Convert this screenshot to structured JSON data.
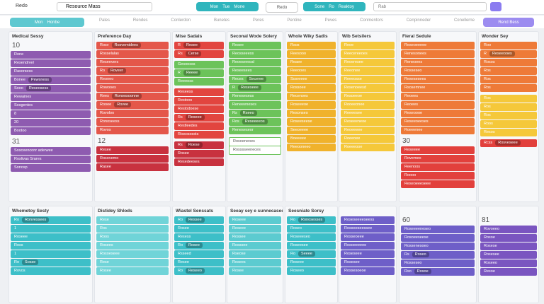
{
  "toolbar": {
    "menu": "Redo",
    "title": "Resource Mass",
    "tabs": [
      "Mon",
      "Tue",
      "Mone"
    ],
    "button": "Redo",
    "view_tabs": [
      "Sone",
      "Ro",
      "Reaktoy"
    ],
    "search": "Rab"
  },
  "subbar": {
    "tabs": [
      "Mon",
      "Honbe"
    ],
    "items": [
      "Pales",
      "Rendes",
      "Conlerdon",
      "Bunetes",
      "Peres",
      "Pentine",
      "Peves",
      "Conmentors",
      "Cenpinneder",
      "Conellerne"
    ],
    "action": "Rend Bess"
  },
  "top_columns": [
    {
      "title": "Medical Sessy",
      "sections": [
        {
          "label": "10",
          "color": "#8e5bb0",
          "cards": [
            "Rone",
            "Resendrvel",
            "Rasorsess",
            {
              "text": "Bonee",
              "chip": "Pewsness"
            },
            {
              "text": "Sooo",
              "chip": "Reseosess"
            },
            "Rewaines",
            "Sosgentes",
            "8",
            "20",
            "Bootoo"
          ]
        },
        {
          "label": "31",
          "color": "#8e5bb0",
          "cards": [
            "Sosceenconr aderwee",
            "Roslivas Srares",
            "Sonosp"
          ]
        }
      ]
    },
    {
      "title": "Preference Day",
      "sections": [
        {
          "color": "#e4574a",
          "cards": [
            {
              "text": "Rosv",
              "chip": "Rosvemidees"
            },
            "Rosselalas",
            "Reseevers",
            {
              "text": "Ro",
              "chip": "Roveer"
            },
            "Reoneo",
            "Rowooes",
            {
              "text": "Rees",
              "chip": "Ronoosoonne"
            },
            {
              "text": "Rooee",
              "chip": "Rovee"
            },
            "Rovoloo",
            "Ronoseess",
            "Rovos"
          ]
        },
        {
          "label": "12",
          "color": "#c8323f",
          "cards": [
            "Resee",
            "Rosovemo",
            "Rasee"
          ]
        }
      ]
    },
    {
      "title": "Mise Sadais",
      "sections": [
        {
          "color": "#e2453f",
          "cards": [
            {
              "text": "R",
              "chip": "Resee"
            },
            {
              "text": "Rs",
              "chip": "Cerse"
            }
          ]
        },
        {
          "color": "#6cc35a",
          "cards": [
            "Gesoosss",
            {
              "text": "R",
              "chip": "Reeee"
            },
            "Reeeoss"
          ]
        },
        {
          "color": "#e2453f",
          "cards": [
            "Reseess",
            "Restoos",
            "Restodoese",
            {
              "text": "Rs",
              "chip": "Reseee"
            },
            "Restleedes",
            "Rissosossts"
          ]
        },
        {
          "color": "#c8323f",
          "cards": [
            {
              "text": "Rs",
              "chip": "Roese"
            },
            "Rosee",
            "Resedeeses"
          ]
        }
      ]
    },
    {
      "title": "Seconal Wode Solery",
      "sections": [
        {
          "color": "#6cc35a",
          "cards": [
            "Resee",
            "Reosseeess",
            "Reoeseeosd",
            "Reseesees",
            {
              "text": "Reces",
              "chip": "Seceree"
            },
            {
              "text": "R",
              "chip": "Reseseee"
            },
            "Renesesess",
            "Reneeeneses",
            {
              "text": "Rs",
              "chip": "Rseeo"
            },
            {
              "text": "Ros",
              "chip": "Reseeeeos"
            },
            "Reneseseor"
          ]
        },
        {
          "color": "#ffffff",
          "cards": [
            "Rosoeneoes",
            "Rosssseeneces"
          ]
        }
      ]
    },
    {
      "title": "Whole Wiky Sadis",
      "sections": [
        {
          "color": "#f0b22c",
          "cards": [
            "Rsos",
            "Reesooo",
            "Reaee",
            "Reeooes",
            "Sosreeee",
            "Rossoee",
            "Recenoes",
            "Roseeeoe",
            "Resonseo",
            "Roseeseese",
            "Seeoeeee",
            "Boeeeee",
            "Reeooneeo"
          ]
        }
      ]
    },
    {
      "title": "Wib Setsilers",
      "sections": [
        {
          "color": "#f5c83a",
          "cards": [
            "Reoe",
            "Reecereeoes",
            "Reoeresee",
            "Reeonee",
            "Reeeosse",
            "Rosenoeesd",
            "Resoeeoe",
            "Rooeeonee",
            "Reeeesee",
            "Reseeeneoe",
            "Reoeeeee",
            "Roeeoee",
            "Roeeeooe"
          ]
        }
      ]
    },
    {
      "title": "Fieral Sedule",
      "sections": [
        {
          "color": "#ee7a38",
          "cards": [
            "Reseoeeeee",
            "Renesonees",
            "Reneoees",
            "Rosseseo",
            "Resesesees",
            "Rsosemnee",
            "Reoees",
            "Reoees",
            "Reseoooe",
            "Reseeoeeses",
            "Roeeenee"
          ]
        },
        {
          "label": "30",
          "color": "#e2403c",
          "cards": [
            "Reseeee",
            "Rovemeo",
            "Reenoos",
            "Roooo",
            "Reseoeeeseee"
          ]
        }
      ]
    },
    {
      "title": "Wonder Sey",
      "sections": [
        {
          "color": "#ee7a38",
          "cards": [
            "Roo",
            {
              "text": "R",
              "chip": "Reseeooes"
            },
            "Rosos",
            "Ros",
            "Ros",
            "Ros"
          ]
        },
        {
          "color": "#f5c83a",
          "cards": [
            "Ros",
            "Ros",
            "Ros",
            "Roos",
            "Resos"
          ]
        },
        {
          "color": "#e2403c",
          "cards": [
            {
              "text": "Rcss",
              "chip": "Rosveseee"
            }
          ]
        }
      ]
    }
  ],
  "bottom_columns": [
    {
      "title": "Whemetoy Sesty",
      "sections": [
        {
          "color": "#3dbfc8",
          "cards": [
            {
              "text": "Ro",
              "chip": "Ronvessees"
            },
            "1",
            "Roseee",
            "Ross",
            "1",
            {
              "text": "Ro",
              "chip": "Sosse"
            },
            "Rovos"
          ]
        }
      ]
    },
    {
      "title": "Distidey Shlods",
      "sections": [
        {
          "color": "#70d4d8",
          "cards": [
            "Rese",
            "Ros",
            "Roos",
            "Rosees",
            "Rosoeseee",
            "Rese",
            "Rosee"
          ]
        }
      ]
    },
    {
      "title": "Wiastel Senssats",
      "sections": [
        {
          "color": "#3dbfc8",
          "cards": [
            {
              "text": "Ro",
              "chip": "Ressee"
            },
            "Rosee",
            "Resess",
            {
              "text": "Ro",
              "chip": "Rosee"
            },
            "Rsseed",
            "Resee",
            {
              "text": "Ro",
              "chip": "Reseeo"
            }
          ]
        }
      ]
    },
    {
      "title": "Seeay sey e sunnecasee",
      "sections": [
        {
          "color": "#5ccbd0",
          "cards": [
            "Roseee",
            "Reseee",
            "Rossee",
            "Rosssee",
            "Rseose",
            "Resees",
            "Rosee"
          ]
        }
      ]
    },
    {
      "title": "Seesniate Sorsy",
      "sections": [
        {
          "color": "#3dbfc8",
          "cards": [
            {
              "text": "Ro",
              "chip": "Ronosesses"
            },
            "Roseo",
            "Roseeeseo",
            "Roseesee",
            {
              "text": "Ro",
              "chip": "Seeee"
            },
            "Reseee",
            "Roseeo"
          ]
        }
      ]
    },
    {
      "title": "",
      "sections": [
        {
          "color": "#6e5fc8",
          "cards": [
            "Roseseeeeseess",
            "Rossoeseessee",
            "Rosseoeee",
            "Rosoeeeeeo",
            "Roseseee",
            "Rosesee",
            "Rossesoeoe"
          ]
        }
      ]
    },
    {
      "title": "",
      "sections": [
        {
          "label": "60",
          "color": "#6e5fc8",
          "cards": [
            "Roseeeeneseo",
            "Rosoeeseese",
            "Rossenesoeo",
            {
              "text": "Rs",
              "chip": "Roseo"
            },
            "Rosseseo",
            {
              "text": "Rso",
              "chip": "Rosoe"
            }
          ]
        }
      ]
    },
    {
      "title": "",
      "sections": [
        {
          "label": "81",
          "color": "#7a55c0",
          "cards": [
            "Rovoeeo",
            "Rosoe",
            "Rosese",
            "Rosesee",
            "Roseeo",
            "Resoe"
          ]
        }
      ]
    }
  ]
}
